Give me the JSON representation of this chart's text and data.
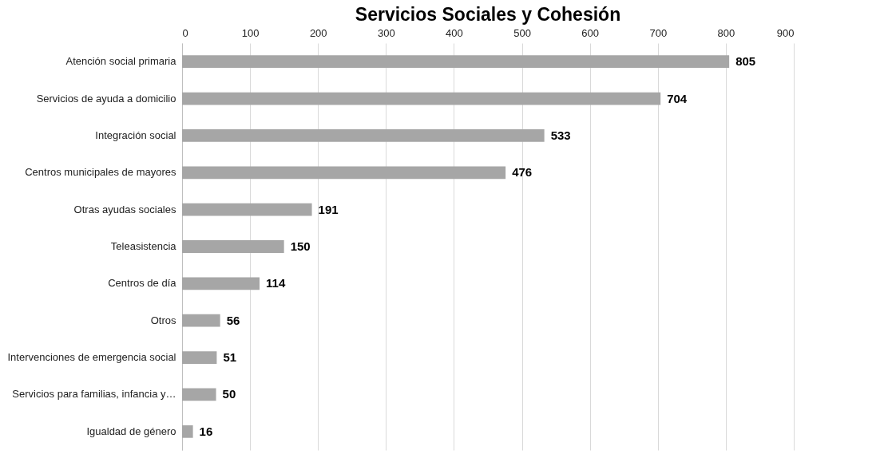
{
  "chart_data": {
    "type": "bar",
    "orientation": "horizontal",
    "title": "Servicios Sociales y Cohesión",
    "categories": [
      "Atención social primaria",
      "Servicios de ayuda a domicilio",
      "Integración social",
      "Centros municipales de mayores",
      "Otras ayudas sociales",
      "Teleasistencia",
      "Centros de día",
      "Otros",
      "Intervenciones de emergencia social",
      "Servicios para familias, infancia y…",
      "Igualdad de género"
    ],
    "values": [
      805,
      704,
      533,
      476,
      191,
      150,
      114,
      56,
      51,
      50,
      16
    ],
    "color": "#a6a6a6",
    "xlim": [
      0,
      900
    ],
    "xticks": [
      0,
      100,
      200,
      300,
      400,
      500,
      600,
      700,
      800,
      900
    ],
    "grid": "x",
    "data_labels": true
  }
}
